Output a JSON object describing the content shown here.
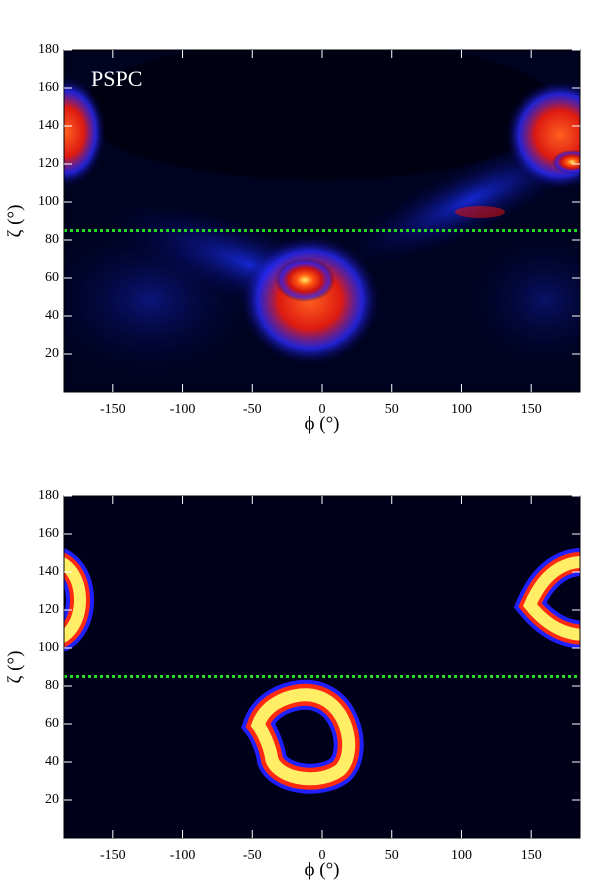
{
  "chart_data": [
    {
      "type": "heatmap",
      "annotation": "PSPC",
      "xlabel": "ϕ (°)",
      "ylabel": "ζ (°)",
      "xlim": [
        -185,
        185
      ],
      "ylim": [
        0,
        180
      ],
      "xticks": [
        -150,
        -100,
        -50,
        0,
        50,
        100,
        150
      ],
      "yticks": [
        20,
        40,
        60,
        80,
        100,
        120,
        140,
        160,
        180
      ],
      "hline": 85,
      "hline_color": "#22dd22"
    },
    {
      "type": "heatmap",
      "xlabel": "ϕ (°)",
      "ylabel": "ζ (°)",
      "xlim": [
        -185,
        185
      ],
      "ylim": [
        0,
        180
      ],
      "xticks": [
        -150,
        -100,
        -50,
        0,
        50,
        100,
        150
      ],
      "yticks": [
        20,
        40,
        60,
        80,
        100,
        120,
        140,
        160,
        180
      ],
      "hline": 85,
      "hline_color": "#22dd22"
    }
  ]
}
